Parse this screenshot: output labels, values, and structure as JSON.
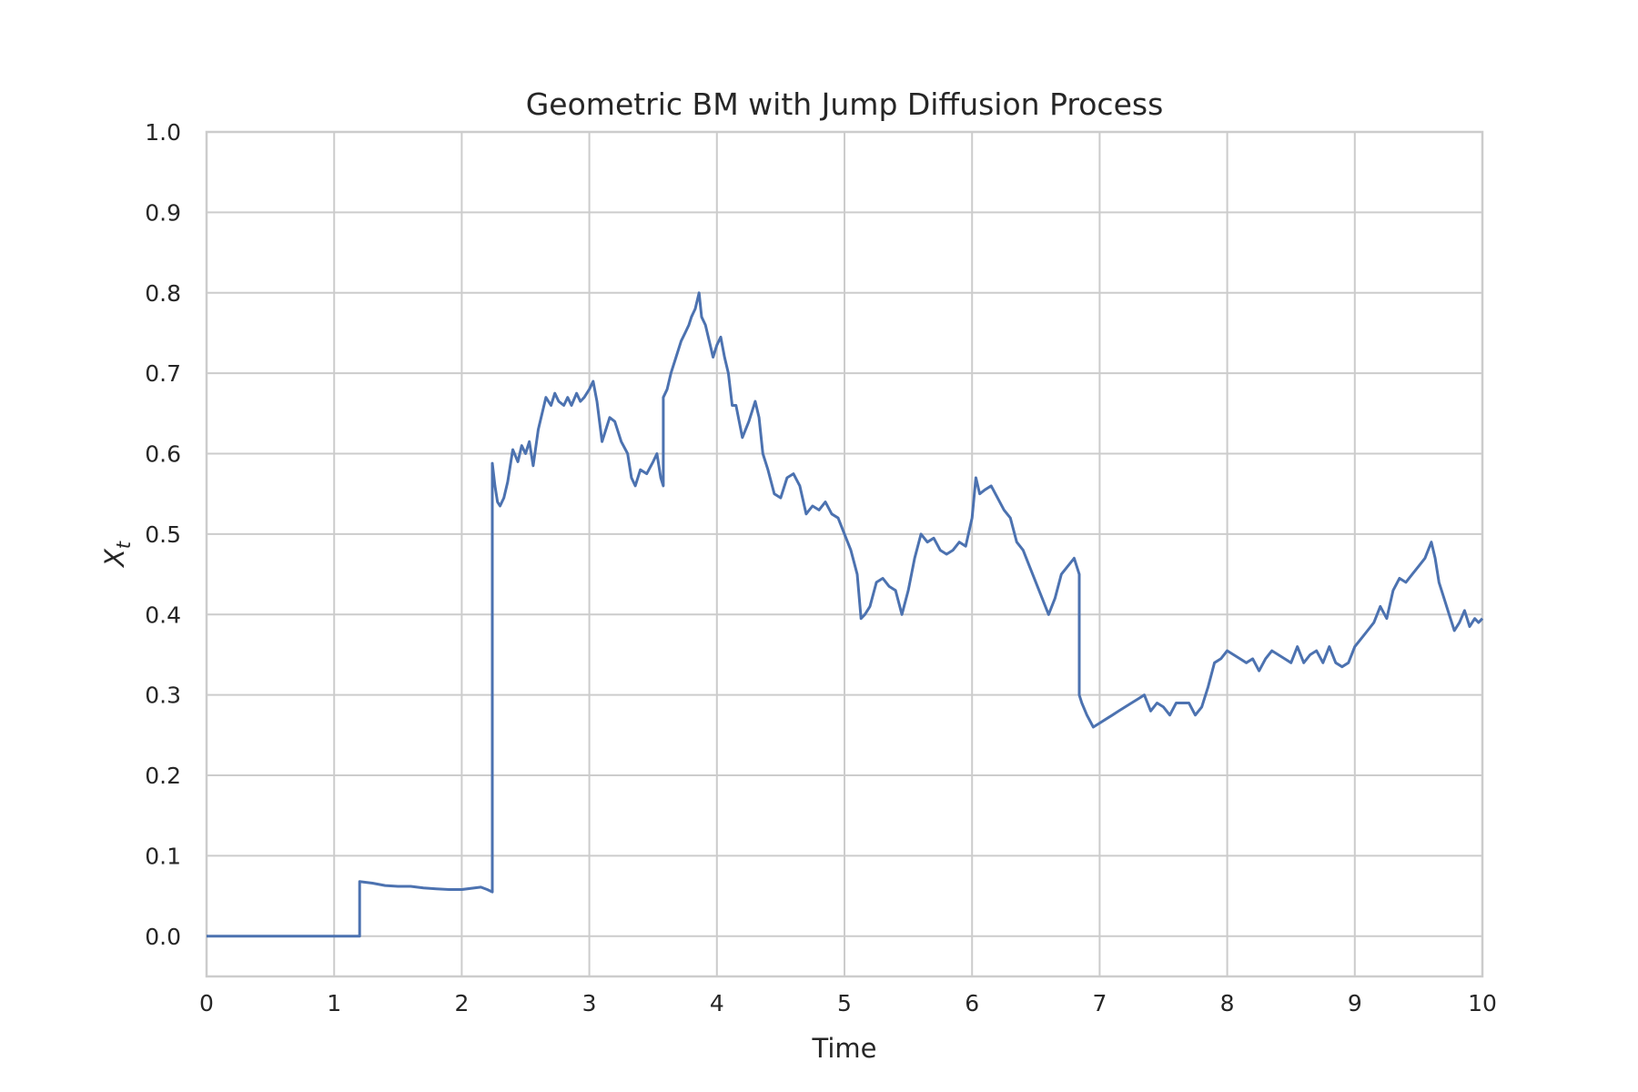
{
  "chart_data": {
    "type": "line",
    "title": "Geometric BM with Jump Diffusion Process",
    "xlabel": "Time",
    "ylabel": "X",
    "ylabel_subscript": "t",
    "xlim": [
      0,
      10
    ],
    "ylim": [
      -0.05,
      1.0
    ],
    "xticks": [
      "0",
      "1",
      "2",
      "3",
      "4",
      "5",
      "6",
      "7",
      "8",
      "9",
      "10"
    ],
    "yticks": [
      "0.0",
      "0.1",
      "0.2",
      "0.3",
      "0.4",
      "0.5",
      "0.6",
      "0.7",
      "0.8",
      "0.9",
      "1.0"
    ],
    "grid": true,
    "line_color": "#4c72b0",
    "series": [
      {
        "x": [
          0,
          1.2,
          1.2,
          1.3,
          1.4,
          1.5,
          1.6,
          1.7,
          1.8,
          1.9,
          2.0,
          2.1,
          2.15,
          2.2,
          2.24,
          2.24,
          2.26,
          2.28,
          2.3,
          2.33,
          2.36,
          2.4,
          2.44,
          2.47,
          2.5,
          2.53,
          2.56,
          2.6,
          2.63,
          2.66,
          2.7,
          2.73,
          2.76,
          2.8,
          2.83,
          2.86,
          2.9,
          2.93,
          2.96,
          3.0,
          3.03,
          3.06,
          3.1,
          3.13,
          3.16,
          3.2,
          3.25,
          3.3,
          3.33,
          3.36,
          3.4,
          3.45,
          3.5,
          3.53,
          3.56,
          3.58,
          3.58,
          3.61,
          3.64,
          3.68,
          3.72,
          3.75,
          3.78,
          3.8,
          3.83,
          3.86,
          3.88,
          3.91,
          3.94,
          3.97,
          4.0,
          4.03,
          4.06,
          4.09,
          4.12,
          4.15,
          4.2,
          4.25,
          4.3,
          4.33,
          4.36,
          4.4,
          4.45,
          4.5,
          4.55,
          4.6,
          4.65,
          4.7,
          4.75,
          4.8,
          4.85,
          4.9,
          4.95,
          5.0,
          5.05,
          5.1,
          5.13,
          5.16,
          5.2,
          5.25,
          5.3,
          5.35,
          5.4,
          5.45,
          5.5,
          5.55,
          5.6,
          5.65,
          5.7,
          5.75,
          5.8,
          5.85,
          5.9,
          5.95,
          6.0,
          6.03,
          6.06,
          6.1,
          6.15,
          6.2,
          6.25,
          6.3,
          6.35,
          6.4,
          6.45,
          6.5,
          6.55,
          6.6,
          6.65,
          6.7,
          6.75,
          6.8,
          6.84,
          6.84,
          6.86,
          6.9,
          6.95,
          7.0,
          7.05,
          7.1,
          7.15,
          7.2,
          7.25,
          7.3,
          7.35,
          7.4,
          7.45,
          7.5,
          7.55,
          7.6,
          7.65,
          7.7,
          7.75,
          7.8,
          7.85,
          7.9,
          7.95,
          8.0,
          8.05,
          8.1,
          8.15,
          8.2,
          8.25,
          8.3,
          8.35,
          8.4,
          8.45,
          8.5,
          8.55,
          8.6,
          8.65,
          8.7,
          8.75,
          8.8,
          8.85,
          8.9,
          8.95,
          9.0,
          9.05,
          9.1,
          9.15,
          9.2,
          9.25,
          9.3,
          9.35,
          9.4,
          9.45,
          9.5,
          9.55,
          9.6,
          9.63,
          9.66,
          9.7,
          9.74,
          9.78,
          9.82,
          9.86,
          9.9,
          9.94,
          9.97,
          10.0
        ],
        "y": [
          0.0,
          0.0,
          0.068,
          0.066,
          0.063,
          0.062,
          0.062,
          0.06,
          0.059,
          0.058,
          0.058,
          0.06,
          0.061,
          0.058,
          0.055,
          0.588,
          0.56,
          0.54,
          0.535,
          0.545,
          0.565,
          0.605,
          0.59,
          0.61,
          0.6,
          0.615,
          0.585,
          0.63,
          0.65,
          0.67,
          0.66,
          0.675,
          0.665,
          0.66,
          0.67,
          0.66,
          0.675,
          0.665,
          0.67,
          0.68,
          0.69,
          0.665,
          0.615,
          0.63,
          0.645,
          0.64,
          0.615,
          0.6,
          0.57,
          0.56,
          0.58,
          0.575,
          0.59,
          0.6,
          0.57,
          0.56,
          0.67,
          0.68,
          0.7,
          0.72,
          0.74,
          0.75,
          0.76,
          0.77,
          0.78,
          0.8,
          0.77,
          0.76,
          0.74,
          0.72,
          0.735,
          0.745,
          0.72,
          0.7,
          0.66,
          0.66,
          0.62,
          0.64,
          0.665,
          0.645,
          0.6,
          0.58,
          0.55,
          0.545,
          0.57,
          0.575,
          0.56,
          0.525,
          0.535,
          0.53,
          0.54,
          0.525,
          0.52,
          0.5,
          0.48,
          0.45,
          0.395,
          0.4,
          0.41,
          0.44,
          0.445,
          0.435,
          0.43,
          0.4,
          0.43,
          0.47,
          0.5,
          0.49,
          0.495,
          0.48,
          0.475,
          0.48,
          0.49,
          0.485,
          0.52,
          0.57,
          0.55,
          0.555,
          0.56,
          0.545,
          0.53,
          0.52,
          0.49,
          0.48,
          0.46,
          0.44,
          0.42,
          0.4,
          0.42,
          0.45,
          0.46,
          0.47,
          0.45,
          0.3,
          0.29,
          0.275,
          0.26,
          0.265,
          0.27,
          0.275,
          0.28,
          0.285,
          0.29,
          0.295,
          0.3,
          0.28,
          0.29,
          0.285,
          0.275,
          0.29,
          0.29,
          0.29,
          0.275,
          0.285,
          0.31,
          0.34,
          0.345,
          0.355,
          0.35,
          0.345,
          0.34,
          0.345,
          0.33,
          0.345,
          0.355,
          0.35,
          0.345,
          0.34,
          0.36,
          0.34,
          0.35,
          0.355,
          0.34,
          0.36,
          0.34,
          0.335,
          0.34,
          0.36,
          0.37,
          0.38,
          0.39,
          0.41,
          0.395,
          0.43,
          0.445,
          0.44,
          0.45,
          0.46,
          0.47,
          0.49,
          0.47,
          0.44,
          0.42,
          0.4,
          0.38,
          0.39,
          0.405,
          0.385,
          0.395,
          0.39,
          0.395
        ]
      }
    ]
  }
}
